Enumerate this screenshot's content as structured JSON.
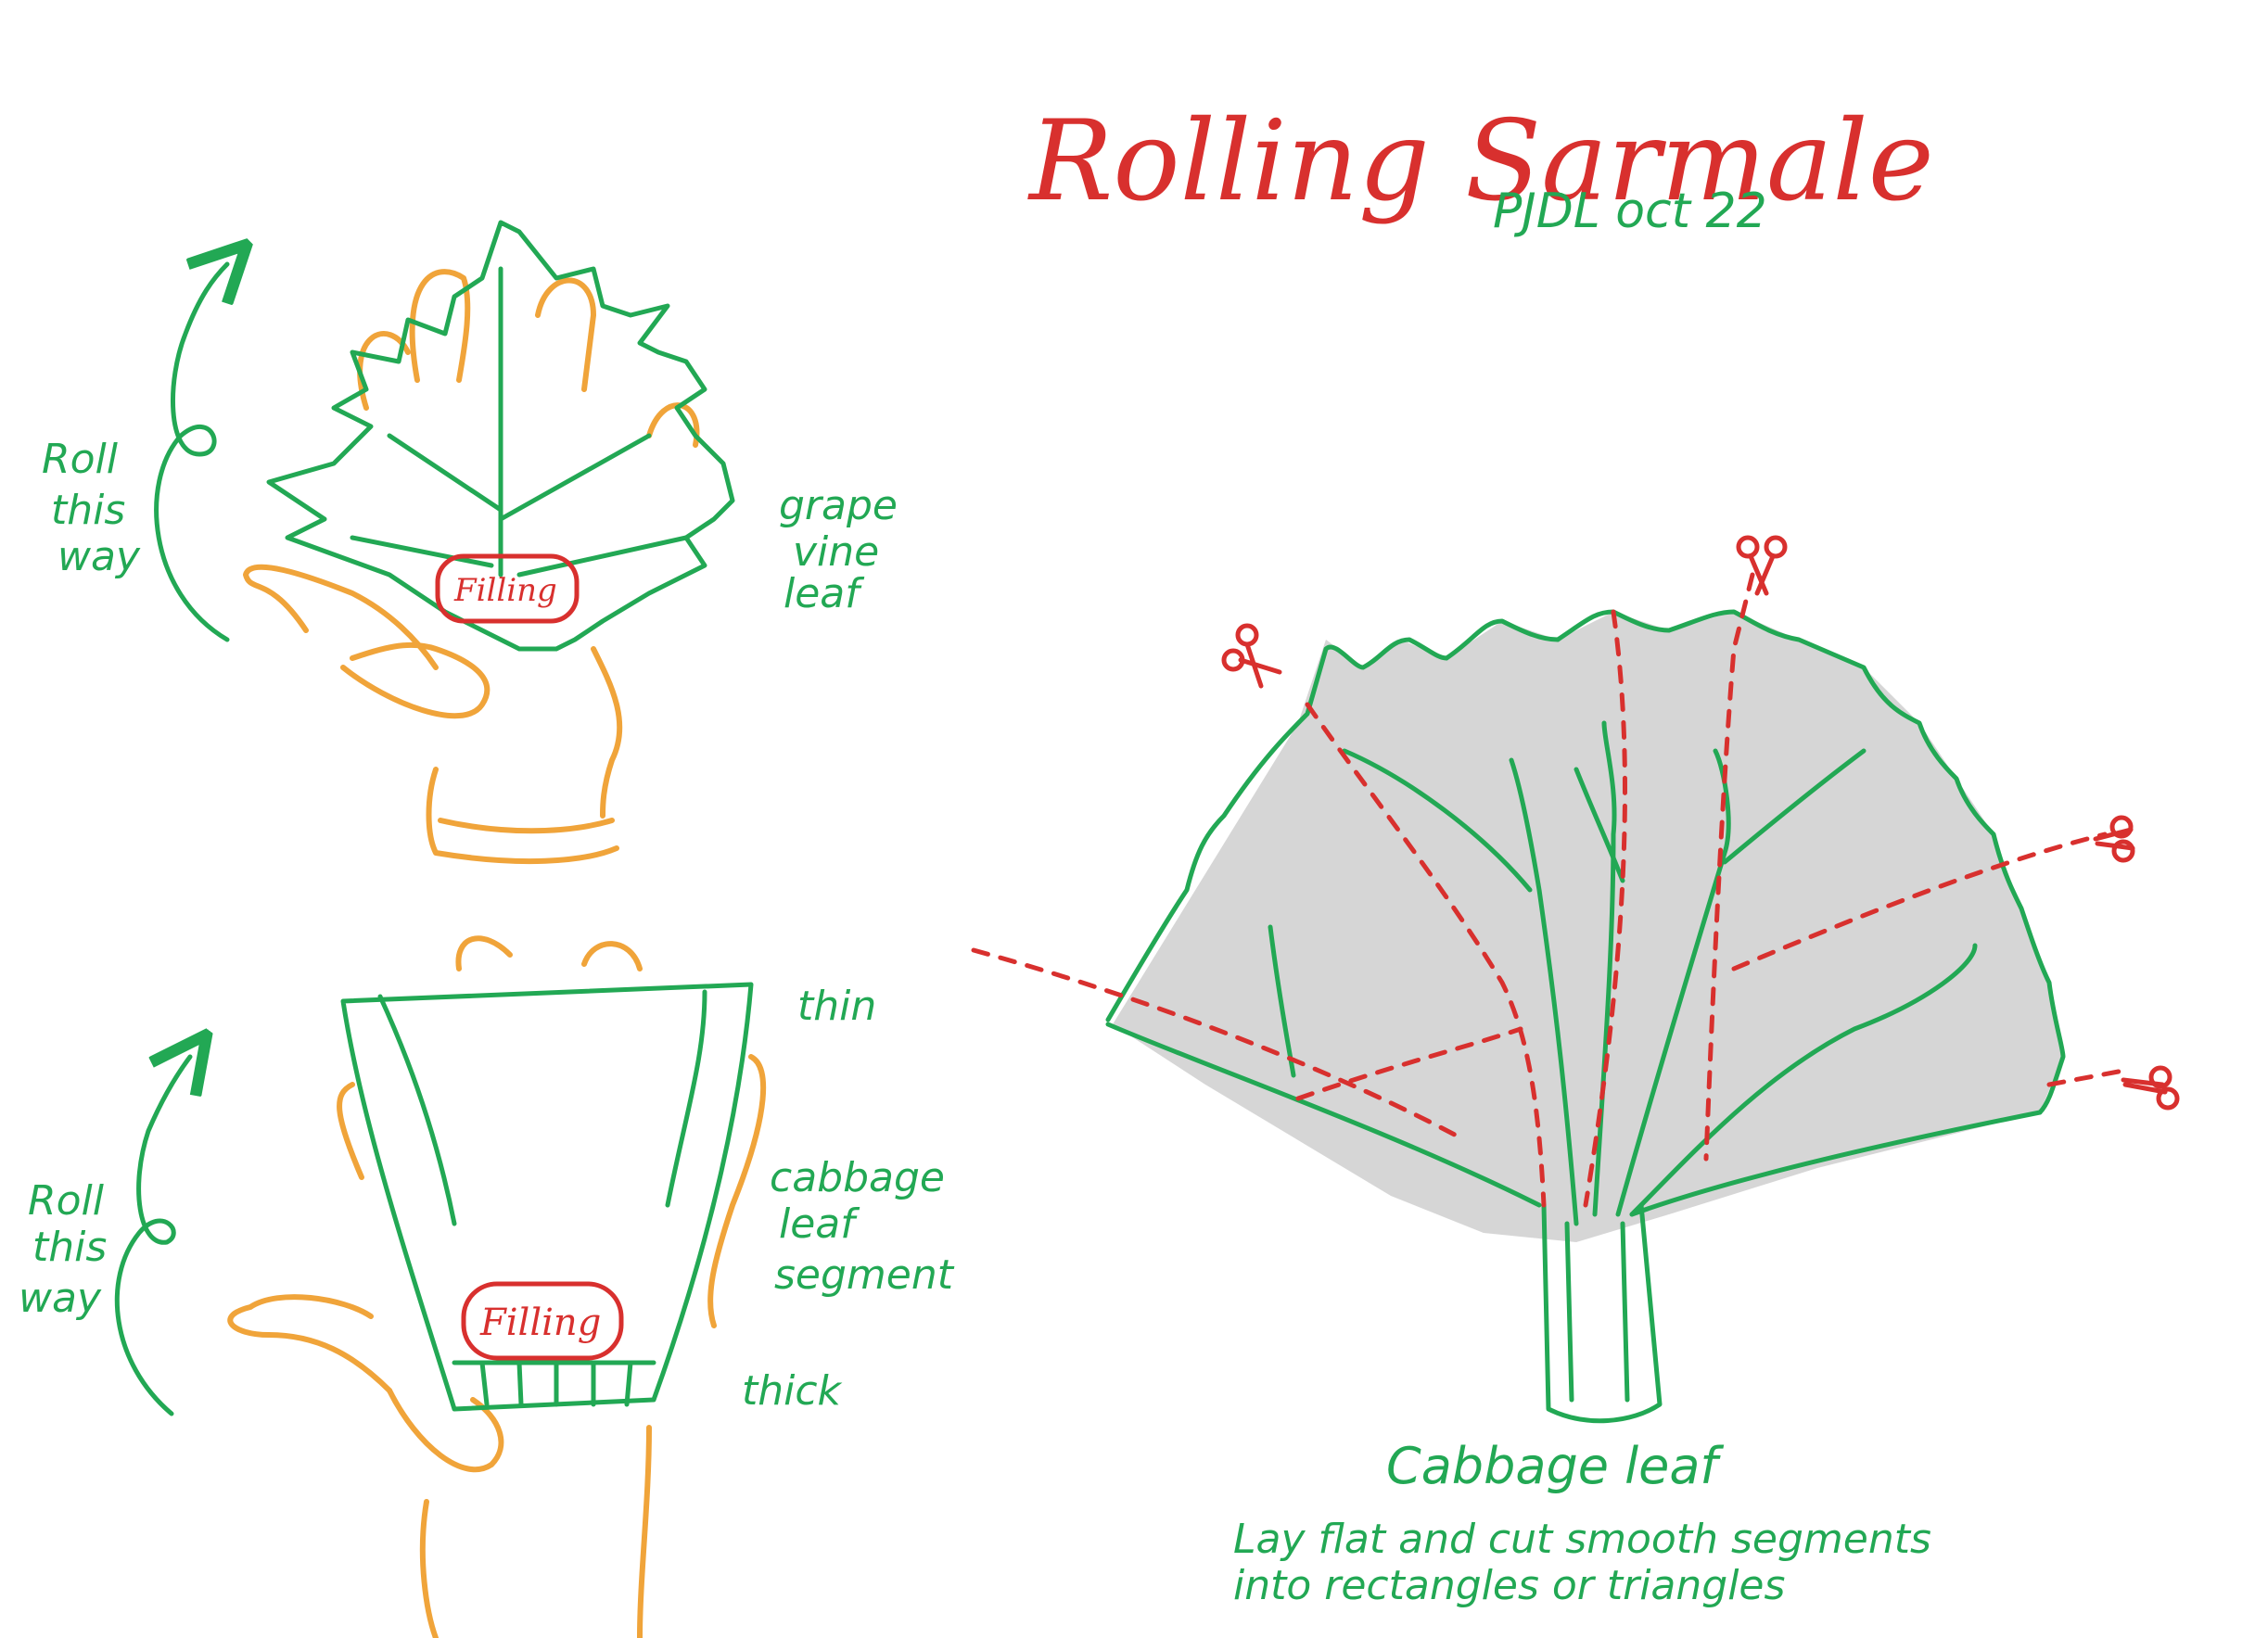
{
  "title": "Rolling Sarmale",
  "author_date": "PJDL oct 22",
  "grape_section": {
    "roll_label": [
      "Roll",
      "this",
      "way"
    ],
    "leaf_label": [
      "grape",
      "vine",
      "leaf"
    ],
    "filling_label": "Filling"
  },
  "cabbage_segment_section": {
    "roll_label": [
      "Roll",
      "this",
      "way"
    ],
    "thin_label": "thin",
    "thick_label": "thick",
    "segment_label": [
      "cabbage",
      "leaf",
      "segment"
    ],
    "filling_label": "Filling"
  },
  "cabbage_leaf_section": {
    "caption_title": "Cabbage leaf",
    "caption_line1": "Lay flat and cut smooth segments",
    "caption_line2": "into rectangles or triangles"
  },
  "colors": {
    "red_ink": "#d8302e",
    "green_ink": "#22a854",
    "orange_ink": "#f0a43a",
    "shading": "#c8c8c8"
  }
}
